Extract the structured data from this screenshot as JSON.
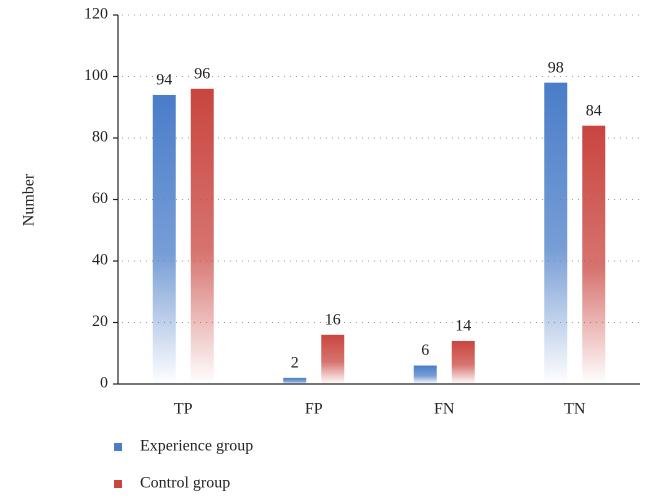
{
  "chart_data": {
    "type": "bar",
    "y_label": "Number",
    "categories": [
      "TP",
      "FP",
      "FN",
      "TN"
    ],
    "series": [
      {
        "name": "Experience group",
        "color": "#4a7dc8",
        "values": [
          94,
          2,
          6,
          98
        ]
      },
      {
        "name": "Control group",
        "color": "#c9453f",
        "values": [
          96,
          16,
          14,
          84
        ]
      }
    ],
    "ylim": [
      0,
      120
    ],
    "yticks": [
      0,
      20,
      40,
      60,
      80,
      100,
      120
    ],
    "grid": true,
    "legend": "bottom-left"
  }
}
